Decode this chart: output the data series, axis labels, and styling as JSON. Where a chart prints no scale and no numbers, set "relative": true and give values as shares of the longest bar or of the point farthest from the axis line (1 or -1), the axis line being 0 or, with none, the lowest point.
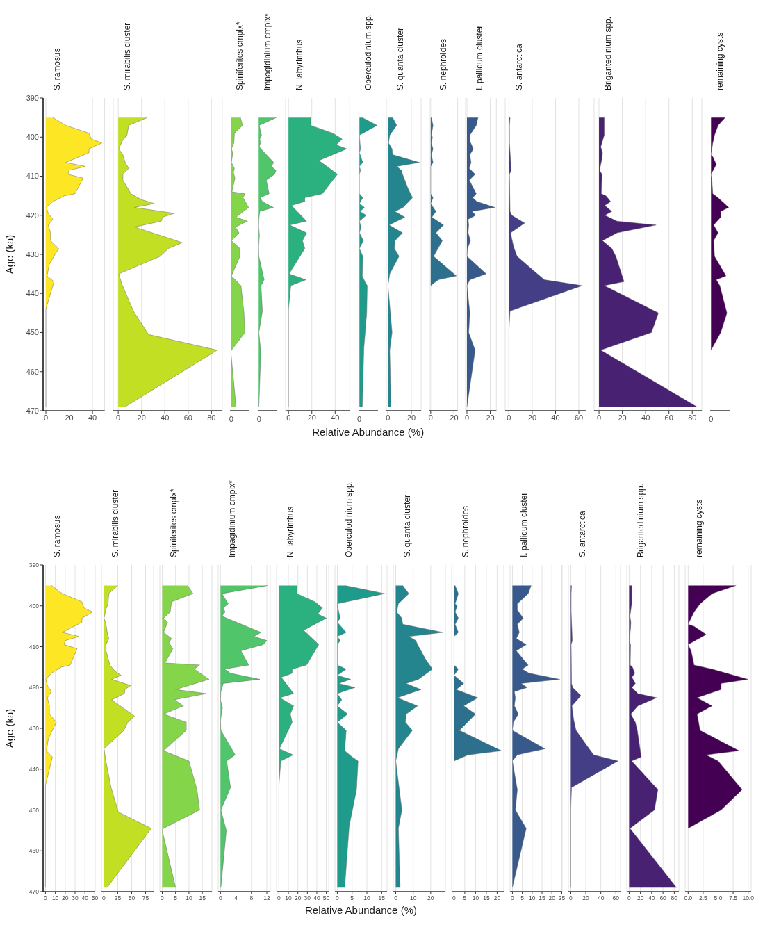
{
  "chart_data": [
    {
      "type": "area",
      "orientation": "horizontal",
      "title": "S. ramosus",
      "ylabel": "Age (ka)",
      "color": "#fde725",
      "grid": "x",
      "x": [
        395,
        397,
        399,
        400.5,
        401.5,
        403,
        404,
        406.5,
        407.5,
        408.5,
        409.5,
        410.5,
        414.5,
        415,
        416.5,
        418,
        419.5,
        421,
        422.5,
        424.5,
        426.5,
        428.5,
        432.5,
        435.5,
        437,
        439,
        444,
        469
      ],
      "values": [
        6,
        17,
        37,
        39,
        48,
        37,
        37,
        17,
        34,
        20,
        19,
        32,
        25,
        16,
        6,
        0.5,
        2,
        6,
        2,
        4,
        4,
        11,
        3,
        1,
        7,
        5,
        0,
        0
      ],
      "xlim": [
        -2.4,
        50.4
      ],
      "xticks": [
        0,
        20,
        40
      ],
      "ylim": [
        470,
        390
      ],
      "yticks": [
        390,
        400,
        410,
        420,
        430,
        440,
        450,
        460,
        470
      ]
    },
    {
      "type": "area",
      "orientation": "horizontal",
      "title": "S. mirabilis cluster",
      "color": "#c2df23",
      "grid": "x",
      "tick_labels": "x",
      "x": [
        395,
        397,
        399.5,
        401,
        403,
        404.5,
        406.5,
        408,
        409.5,
        411,
        414.5,
        416,
        417,
        418,
        419.5,
        420.5,
        421.5,
        423,
        427,
        428.5,
        430.5,
        435,
        437.5,
        444.5,
        450.5,
        454.5,
        469
      ],
      "values": [
        25,
        9,
        7.5,
        3.5,
        0.5,
        4,
        6,
        9,
        4,
        4,
        11,
        20,
        31,
        14,
        48,
        38,
        37,
        14,
        55,
        43,
        36,
        0.5,
        3,
        13,
        26,
        85,
        6
      ],
      "xlim": [
        -4.25,
        89.25
      ],
      "xticks": [
        0,
        20,
        40,
        60,
        80
      ],
      "ylim": [
        470,
        390
      ]
    },
    {
      "type": "area",
      "orientation": "horizontal",
      "title": "Spiniferites cmplx*",
      "color": "#85d54a",
      "tick_labels": "x",
      "x": [
        395,
        397,
        399,
        401.5,
        403,
        404,
        406.5,
        408,
        409,
        410.5,
        414,
        414.5,
        415.5,
        418,
        420.5,
        421.5,
        423,
        424.5,
        426.5,
        428.5,
        430.5,
        435.5,
        438,
        445,
        450,
        454.5,
        455,
        469
      ],
      "values": [
        0.54,
        0.66,
        0.2,
        0.17,
        0.03,
        0.11,
        0.03,
        0.2,
        0.14,
        0.23,
        0.06,
        0.8,
        0.69,
        1,
        0.29,
        0.94,
        0.26,
        0.46,
        0.03,
        0.51,
        0.51,
        0.03,
        0.57,
        0.74,
        0.8,
        0.03,
        0,
        0.29
      ],
      "relative": true,
      "annotations": [
        "0"
      ],
      "ylim": [
        470,
        390
      ]
    },
    {
      "type": "area",
      "orientation": "horizontal",
      "title": "Impagidinium cmplx*",
      "color": "#51c56a",
      "tick_labels": "x",
      "x": [
        395,
        397,
        399.5,
        400.5,
        401.5,
        402.5,
        403,
        406.5,
        407.5,
        408.5,
        409.5,
        411,
        414.5,
        415.5,
        416.5,
        418,
        419,
        421,
        423,
        425,
        428,
        430.5,
        436.5,
        438,
        444.5,
        450,
        455,
        469
      ],
      "values": [
        1,
        0.03,
        0.16,
        0.06,
        0.1,
        0.03,
        0.13,
        0.85,
        0.71,
        0.98,
        0.9,
        0.43,
        0.59,
        0.08,
        0.21,
        0.83,
        0.06,
        0.01,
        0,
        0.04,
        0,
        0.01,
        0.31,
        0.13,
        0.21,
        0.01,
        0.12,
        0.01
      ],
      "relative": true,
      "annotations": [
        "0"
      ],
      "ylim": [
        470,
        390
      ]
    },
    {
      "type": "area",
      "orientation": "horizontal",
      "title": "N. labyrinthus",
      "color": "#2bb07f",
      "grid": "x",
      "tick_labels": "x",
      "x": [
        395,
        397,
        399,
        400.5,
        402,
        403,
        406,
        407.5,
        409.5,
        414.5,
        415.5,
        416.5,
        417.5,
        421.5,
        422.5,
        424.5,
        426.5,
        428.5,
        435,
        436.5,
        438,
        444,
        469
      ],
      "values": [
        19,
        19,
        38,
        46,
        41,
        50,
        26,
        33,
        42,
        29,
        14,
        14,
        2.5,
        15.5,
        1,
        15.5,
        12,
        14,
        0.5,
        15,
        2,
        0,
        0
      ],
      "xlim": [
        -2.5,
        52.5
      ],
      "xticks": [
        0,
        20,
        40
      ],
      "ylim": [
        470,
        390
      ]
    },
    {
      "type": "area",
      "orientation": "horizontal",
      "title": "Operculodinium spp.",
      "xlabel": "Relative Abundance (%)",
      "color": "#1e9b8a",
      "tick_labels": "x",
      "x": [
        395,
        397,
        399.5,
        401.5,
        403,
        404,
        406.5,
        407.5,
        408.5,
        409.5,
        414.5,
        415.5,
        417,
        418,
        419,
        420,
        421.5,
        423,
        424.5,
        426.5,
        428.5,
        430.5,
        435.5,
        437,
        438,
        445,
        454,
        469
      ],
      "values": [
        0.16,
        1,
        0,
        0.03,
        0.06,
        0,
        0.19,
        0,
        0.06,
        0,
        0,
        0.19,
        0,
        0.28,
        0.03,
        0.38,
        0,
        0.09,
        0,
        0.22,
        0,
        0.19,
        0.16,
        0.31,
        0.44,
        0.41,
        0.25,
        0.16
      ],
      "relative": true,
      "annotations": [
        "0"
      ],
      "ylim": [
        470,
        390
      ]
    },
    {
      "type": "area",
      "orientation": "horizontal",
      "title": "S. quanta cluster",
      "color": "#25858e",
      "grid": "x",
      "tick_labels": "x",
      "x": [
        395,
        397,
        399.5,
        401.5,
        403,
        404.5,
        406.5,
        407.5,
        408.5,
        409.5,
        413,
        415.5,
        418,
        419,
        420.5,
        422.5,
        424.5,
        426.5,
        428.5,
        430.5,
        435,
        438,
        450,
        454.5,
        469
      ],
      "values": [
        4,
        7.5,
        1.5,
        0.5,
        3.5,
        4,
        27,
        7.5,
        11.5,
        12.5,
        17,
        21,
        13,
        6,
        14.5,
        1,
        12.5,
        6,
        5.5,
        9.5,
        1.5,
        0,
        3.5,
        1.5,
        2.5
      ],
      "xlim": [
        -1.4,
        28.4
      ],
      "xticks": [
        0,
        20
      ],
      "ylim": [
        470,
        390
      ]
    },
    {
      "type": "area",
      "orientation": "horizontal",
      "title": "S. nephroides",
      "color": "#2d708e",
      "grid": "x",
      "tick_labels": "x",
      "x": [
        395,
        397,
        399.5,
        400,
        401.5,
        403,
        404.5,
        406.5,
        407.5,
        414.5,
        415.5,
        417,
        419,
        420.5,
        422.5,
        424.5,
        426.5,
        430.5,
        435.5,
        436.5,
        438
      ],
      "values": [
        0.5,
        2,
        0.5,
        1.5,
        0.5,
        2,
        0.5,
        2,
        0,
        0,
        2,
        0,
        4.5,
        1,
        11,
        4.5,
        10,
        2.5,
        22,
        6.5,
        0
      ],
      "xlim": [
        -1.1,
        23.1
      ],
      "xticks": [
        0,
        20
      ],
      "ylim": [
        470,
        390
      ]
    },
    {
      "type": "area",
      "orientation": "horizontal",
      "title": "I. pallidum cluster",
      "color": "#38598c",
      "grid": "x",
      "tick_labels": "x",
      "x": [
        395,
        397,
        399.5,
        401,
        403,
        404.5,
        406.5,
        408,
        409.5,
        411,
        414.5,
        415.5,
        416.5,
        418,
        419,
        420,
        421,
        422.5,
        424.5,
        426.5,
        428.5,
        430.5,
        435,
        436.5,
        438,
        445,
        450,
        454.5,
        469
      ],
      "values": [
        9.5,
        8,
        2.5,
        2.5,
        5.5,
        2.5,
        3.5,
        2,
        7,
        2,
        8,
        5,
        8.5,
        24,
        4.5,
        7.5,
        1,
        1.5,
        1,
        3,
        0.5,
        0,
        16.5,
        2.5,
        0,
        2.5,
        1.5,
        7,
        0
      ],
      "xlim": [
        -1.2,
        25.2
      ],
      "xticks": [
        0,
        20
      ],
      "ylim": [
        470,
        390
      ]
    },
    {
      "type": "area",
      "orientation": "horizontal",
      "title": "S. antarctica",
      "color": "#433e85",
      "grid": "x",
      "tick_labels": "x",
      "x": [
        395,
        397,
        401.5,
        408.5,
        409.5,
        419,
        420,
        422,
        424.5,
        426,
        428,
        430.5,
        434,
        436.5,
        438,
        444.5,
        449.5,
        469
      ],
      "values": [
        1,
        0.5,
        0.5,
        2,
        0.5,
        1,
        2.5,
        13.5,
        1.5,
        2.5,
        4,
        7,
        20.5,
        30.5,
        63,
        1,
        0,
        0
      ],
      "xlim": [
        -3.2,
        66.2
      ],
      "xticks": [
        0,
        20,
        40,
        60
      ],
      "ylim": [
        470,
        390
      ]
    },
    {
      "type": "area",
      "orientation": "horizontal",
      "title": "Brigantedinium spp.",
      "color": "#482173",
      "grid": "x",
      "tick_labels": "x",
      "x": [
        395,
        399.5,
        402.5,
        404,
        405.5,
        408.5,
        409.5,
        414.5,
        415,
        416.5,
        417.5,
        419,
        420,
        421.5,
        422.5,
        424.5,
        426.5,
        428.5,
        430.5,
        437,
        438,
        445,
        450,
        454.5,
        469
      ],
      "values": [
        4.5,
        4.5,
        1.5,
        3,
        2.5,
        0.5,
        2.5,
        2,
        6,
        10,
        5,
        11,
        5,
        15.5,
        49,
        15.5,
        3,
        11,
        14.5,
        21.5,
        4.5,
        51,
        45,
        1.5,
        84
      ],
      "xlim": [
        -4.2,
        88.2
      ],
      "xticks": [
        0,
        20,
        40,
        60,
        80
      ],
      "ylim": [
        470,
        390
      ]
    },
    {
      "type": "area",
      "orientation": "horizontal",
      "title": "remaining cysts",
      "color": "#440154",
      "tick_labels": "x",
      "x": [
        395,
        397,
        399.5,
        401.5,
        404.5,
        405,
        406.5,
        407,
        409.5,
        411,
        414.5,
        415.5,
        418,
        419,
        420.5,
        422.5,
        424.5,
        426.5,
        430.5,
        435.5,
        436.5,
        438,
        445,
        450,
        454.5
      ],
      "values": [
        0.8,
        0.4,
        0.2,
        0.1,
        0,
        0.1,
        0.25,
        0.3,
        0,
        0.05,
        0.1,
        0.4,
        1,
        0.55,
        0.55,
        0.15,
        0.4,
        0.15,
        0.2,
        0.85,
        0.3,
        0.5,
        0.9,
        0.55,
        0
      ],
      "relative": true,
      "annotations": [
        "0"
      ],
      "ylim": [
        470,
        390
      ]
    },
    {
      "type": "area",
      "orientation": "horizontal",
      "title": "S. ramosus",
      "ylabel": "Age (ka)",
      "color": "#fde725",
      "grid": "x",
      "x": [
        395,
        397,
        399,
        400.5,
        401.5,
        403,
        404,
        406.5,
        407.5,
        408.5,
        409.5,
        410.5,
        414.5,
        415,
        416.5,
        418,
        419.5,
        421,
        422.5,
        424.5,
        426.5,
        428.5,
        432.5,
        435.5,
        437,
        439,
        444,
        469
      ],
      "values": [
        6,
        17,
        37,
        39,
        48,
        37,
        37,
        17,
        34,
        20,
        19,
        32,
        25,
        16,
        6,
        0.5,
        2,
        6,
        2,
        4,
        4,
        11,
        3,
        1,
        7,
        5,
        0,
        0
      ],
      "xlim": [
        -2.4,
        50.4
      ],
      "xticks": [
        0,
        10,
        20,
        30,
        40,
        50
      ],
      "ylim": [
        470,
        390
      ],
      "yticks": [
        390,
        400,
        410,
        420,
        430,
        440,
        450,
        460,
        470
      ]
    },
    {
      "type": "area",
      "orientation": "horizontal",
      "title": "S. mirabilis cluster",
      "color": "#c2df23",
      "grid": "x",
      "tick_labels": "x",
      "x": [
        395,
        397,
        399.5,
        401,
        403,
        404.5,
        406.5,
        408,
        409.5,
        411,
        414.5,
        416,
        417,
        418,
        419.5,
        420.5,
        421.5,
        423,
        427,
        428.5,
        430.5,
        435,
        437.5,
        444.5,
        450.5,
        454.5,
        469
      ],
      "values": [
        25,
        9,
        7.5,
        3.5,
        0.5,
        4,
        6,
        9,
        4,
        4,
        11,
        20,
        31,
        14,
        48,
        38,
        37,
        14,
        55,
        43,
        36,
        0.5,
        3,
        13,
        26,
        85,
        6
      ],
      "xlim": [
        -4.25,
        89.25
      ],
      "xticks": [
        0,
        25,
        50,
        75
      ],
      "ylim": [
        470,
        390
      ]
    },
    {
      "type": "area",
      "orientation": "horizontal",
      "title": "Spiniferites cmplx*",
      "color": "#85d54a",
      "grid": "x",
      "tick_labels": "x",
      "x": [
        395,
        397,
        399,
        401.5,
        403,
        404,
        406.5,
        408,
        409,
        410.5,
        414,
        414.5,
        415.5,
        418,
        420.5,
        421.5,
        423,
        424.5,
        426.5,
        428.5,
        430.5,
        435.5,
        438,
        445,
        450,
        454.5,
        455,
        469
      ],
      "values": [
        9.5,
        11.5,
        3.5,
        3,
        0.5,
        2,
        0.5,
        3.5,
        2.5,
        4,
        1,
        14,
        12,
        17.5,
        5,
        16.5,
        4.5,
        8,
        0.5,
        9,
        9,
        0.5,
        10,
        13,
        14,
        0.5,
        0,
        5
      ],
      "xlim": [
        -0.9,
        18.6
      ],
      "xticks": [
        0,
        5,
        10,
        15
      ],
      "ylim": [
        470,
        390
      ]
    },
    {
      "type": "area",
      "orientation": "horizontal",
      "title": "Impagidinium cmplx*",
      "color": "#51c56a",
      "grid": "x",
      "tick_labels": "x",
      "x": [
        395,
        397,
        399.5,
        400.5,
        401.5,
        402.5,
        403,
        406.5,
        407.5,
        408.5,
        409.5,
        411,
        414.5,
        415.5,
        416.5,
        418,
        419,
        421,
        423,
        425,
        428,
        430.5,
        436.5,
        438,
        444.5,
        450,
        455,
        469
      ],
      "values": [
        12.3,
        0.4,
        2,
        0.7,
        1.2,
        0.4,
        1.6,
        10.5,
        8.7,
        12,
        11.1,
        5.3,
        7.3,
        1,
        2.6,
        10.2,
        0.7,
        0.1,
        0,
        0.5,
        0,
        0.1,
        3.8,
        1.6,
        2.6,
        0.1,
        1.5,
        0.1
      ],
      "xlim": [
        -0.6,
        12.9
      ],
      "xticks": [
        0,
        4,
        8,
        12
      ],
      "ylim": [
        470,
        390
      ]
    },
    {
      "type": "area",
      "orientation": "horizontal",
      "title": "N. labyrinthus",
      "color": "#2bb07f",
      "grid": "x",
      "tick_labels": "x",
      "x": [
        395,
        397,
        399,
        400.5,
        402,
        403,
        406,
        407.5,
        409.5,
        414.5,
        415.5,
        416.5,
        417.5,
        421.5,
        422.5,
        424.5,
        426.5,
        428.5,
        435,
        436.5,
        438,
        444,
        469
      ],
      "values": [
        19,
        19,
        38,
        46,
        41,
        50,
        26,
        33,
        42,
        29,
        14,
        14,
        2.5,
        15.5,
        1,
        15.5,
        12,
        14,
        0.5,
        15,
        2,
        0,
        0
      ],
      "xlim": [
        -2.5,
        52.5
      ],
      "xticks": [
        0,
        10,
        20,
        30,
        40,
        50
      ],
      "ylim": [
        470,
        390
      ]
    },
    {
      "type": "area",
      "orientation": "horizontal",
      "title": "Operculodinium spp.",
      "xlabel": "Relative Abundance (%)",
      "color": "#1e9b8a",
      "grid": "x",
      "tick_labels": "x",
      "x": [
        395,
        397,
        399.5,
        401.5,
        403,
        404,
        406.5,
        407.5,
        408.5,
        409.5,
        414.5,
        415.5,
        417,
        418,
        419,
        420,
        421.5,
        423,
        424.5,
        426.5,
        428.5,
        430.5,
        435.5,
        437,
        438,
        445,
        454,
        469
      ],
      "values": [
        2.5,
        16,
        0,
        0.5,
        1,
        0,
        3,
        0,
        1,
        0,
        0,
        3,
        0,
        4.5,
        0.5,
        6,
        0,
        1.5,
        0,
        3.5,
        0,
        3,
        2.5,
        5,
        7,
        6.5,
        4,
        2.5
      ],
      "xlim": [
        -0.8,
        16.8
      ],
      "xticks": [
        0,
        5,
        10,
        15
      ],
      "ylim": [
        470,
        390
      ]
    },
    {
      "type": "area",
      "orientation": "horizontal",
      "title": "S. quanta cluster",
      "color": "#25858e",
      "grid": "x",
      "tick_labels": "x",
      "x": [
        395,
        397,
        399.5,
        401.5,
        403,
        404.5,
        406.5,
        407.5,
        408.5,
        409.5,
        413,
        415.5,
        418,
        419,
        420.5,
        422.5,
        424.5,
        426.5,
        428.5,
        430.5,
        435,
        438,
        450,
        454.5,
        469
      ],
      "values": [
        4,
        7.5,
        1.5,
        0.5,
        3.5,
        4,
        27,
        7.5,
        11.5,
        12.5,
        17,
        21,
        13,
        6,
        14.5,
        1,
        12.5,
        6,
        5.5,
        9.5,
        1.5,
        0,
        3.5,
        1.5,
        2.5
      ],
      "xlim": [
        -1.4,
        28.4
      ],
      "xticks": [
        0,
        10,
        20
      ],
      "ylim": [
        470,
        390
      ]
    },
    {
      "type": "area",
      "orientation": "horizontal",
      "title": "S. nephroides",
      "color": "#2d708e",
      "grid": "x",
      "tick_labels": "x",
      "x": [
        395,
        397,
        399.5,
        400,
        401.5,
        403,
        404.5,
        406.5,
        407.5,
        414.5,
        415.5,
        417,
        419,
        420.5,
        422.5,
        424.5,
        426.5,
        430.5,
        435.5,
        436.5,
        438
      ],
      "values": [
        0.5,
        2,
        0.5,
        1.5,
        0.5,
        2,
        0.5,
        2,
        0,
        0,
        2,
        0,
        4.5,
        1,
        11,
        4.5,
        10,
        2.5,
        22,
        6.5,
        0
      ],
      "xlim": [
        -1.1,
        23.1
      ],
      "xticks": [
        0,
        5,
        10,
        15,
        20
      ],
      "ylim": [
        470,
        390
      ]
    },
    {
      "type": "area",
      "orientation": "horizontal",
      "title": "I. pallidum cluster",
      "color": "#38598c",
      "grid": "x",
      "tick_labels": "x",
      "x": [
        395,
        397,
        399.5,
        401,
        403,
        404.5,
        406.5,
        408,
        409.5,
        411,
        414.5,
        415.5,
        416.5,
        418,
        419,
        420,
        421,
        422.5,
        424.5,
        426.5,
        428.5,
        430.5,
        435,
        436.5,
        438,
        445,
        450,
        454.5,
        469
      ],
      "values": [
        9.5,
        8,
        2.5,
        2.5,
        5.5,
        2.5,
        3.5,
        2,
        7,
        2,
        8,
        5,
        8.5,
        24,
        4.5,
        7.5,
        1,
        1.5,
        1,
        3,
        0.5,
        0,
        16.5,
        2.5,
        0,
        2.5,
        1.5,
        7,
        0
      ],
      "xlim": [
        -1.2,
        25.2
      ],
      "xticks": [
        0,
        5,
        10,
        15,
        20,
        25
      ],
      "ylim": [
        470,
        390
      ]
    },
    {
      "type": "area",
      "orientation": "horizontal",
      "title": "S. antarctica",
      "color": "#433e85",
      "grid": "x",
      "tick_labels": "x",
      "x": [
        395,
        397,
        401.5,
        408.5,
        409.5,
        419,
        420,
        422,
        424.5,
        426,
        428,
        430.5,
        434,
        436.5,
        438,
        444.5,
        449.5,
        469
      ],
      "values": [
        1,
        0.5,
        0.5,
        2,
        0.5,
        1,
        2.5,
        13.5,
        1.5,
        2.5,
        4,
        7,
        20.5,
        30.5,
        63,
        1,
        0,
        0
      ],
      "xlim": [
        -3.2,
        66.2
      ],
      "xticks": [
        0,
        20,
        40,
        60
      ],
      "ylim": [
        470,
        390
      ]
    },
    {
      "type": "area",
      "orientation": "horizontal",
      "title": "Brigantedinium spp.",
      "color": "#482173",
      "grid": "x",
      "tick_labels": "x",
      "x": [
        395,
        399.5,
        402.5,
        404,
        405.5,
        408.5,
        409.5,
        414.5,
        415,
        416.5,
        417.5,
        419,
        420,
        421.5,
        422.5,
        424.5,
        426.5,
        428.5,
        430.5,
        437,
        438,
        445,
        450,
        454.5,
        469
      ],
      "values": [
        4.5,
        4.5,
        1.5,
        3,
        2.5,
        0.5,
        2.5,
        2,
        6,
        10,
        5,
        11,
        5,
        15.5,
        49,
        15.5,
        3,
        11,
        14.5,
        21.5,
        4.5,
        51,
        45,
        1.5,
        84
      ],
      "xlim": [
        -4.2,
        88.2
      ],
      "xticks": [
        0,
        20,
        40,
        60,
        80
      ],
      "ylim": [
        470,
        390
      ]
    },
    {
      "type": "area",
      "orientation": "horizontal",
      "title": "remaining cysts",
      "color": "#440154",
      "grid": "x",
      "tick_labels": "x",
      "x": [
        395,
        397,
        399.5,
        401.5,
        404.5,
        405,
        406.5,
        407,
        409.5,
        411,
        414.5,
        415.5,
        418,
        419,
        420.5,
        422.5,
        424.5,
        426.5,
        430.5,
        435.5,
        436.5,
        438,
        445,
        450,
        454.5
      ],
      "values": [
        8,
        4,
        2,
        1,
        0,
        1,
        2.5,
        3,
        0,
        0.5,
        1,
        4,
        10,
        5.5,
        5.5,
        1.5,
        4,
        1.5,
        2,
        8.5,
        3,
        5,
        9,
        5.5,
        0
      ],
      "xlim": [
        -0.5,
        10.5
      ],
      "xticks": [
        {
          "value": 0,
          "label": "0.0"
        },
        {
          "value": 2.5,
          "label": "2.5"
        },
        {
          "value": 5,
          "label": "5.0"
        },
        {
          "value": 7.5,
          "label": "7.5"
        },
        {
          "value": 10,
          "label": "10.0"
        }
      ],
      "ylim": [
        470,
        390
      ]
    }
  ]
}
